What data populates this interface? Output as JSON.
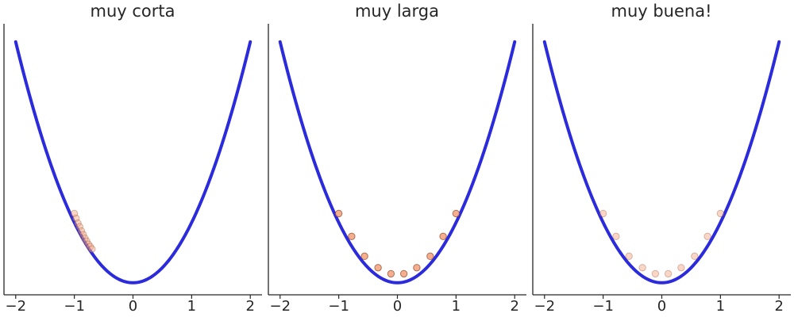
{
  "chart_data": [
    {
      "type": "line",
      "title": "muy corta",
      "xlabel": "",
      "ylabel": "",
      "xlim": [
        -2.2,
        2.2
      ],
      "ylim": [
        -0.2,
        4.3
      ],
      "x_ticks": [
        -2,
        -1,
        0,
        1,
        2
      ],
      "x_tick_labels": [
        "−2",
        "−1",
        "0",
        "1",
        "2"
      ],
      "y_ticks": [],
      "grid": false,
      "series": [
        {
          "kind": "line",
          "function": "y = x^2",
          "x_range": [
            -2,
            2
          ],
          "color": "#2b2bdc"
        },
        {
          "kind": "scatter",
          "color": "#f4a582",
          "opacity": 0.45,
          "x": [
            -1.0,
            -0.97,
            -0.94,
            -0.91,
            -0.88,
            -0.85,
            -0.82,
            -0.79,
            -0.76,
            -0.73,
            -0.7
          ],
          "y": [
            1.15,
            1.07,
            0.99,
            0.93,
            0.86,
            0.8,
            0.74,
            0.69,
            0.64,
            0.6,
            0.56
          ]
        }
      ]
    },
    {
      "type": "line",
      "title": "muy larga",
      "xlabel": "",
      "ylabel": "",
      "xlim": [
        -2.2,
        2.2
      ],
      "ylim": [
        -0.2,
        4.3
      ],
      "x_ticks": [
        -2,
        -1,
        0,
        1,
        2
      ],
      "x_tick_labels": [
        "−2",
        "−1",
        "0",
        "1",
        "2"
      ],
      "y_ticks": [],
      "grid": false,
      "series": [
        {
          "kind": "line",
          "function": "y = x^2",
          "x_range": [
            -2,
            2
          ],
          "color": "#2b2bdc"
        },
        {
          "kind": "scatter",
          "color": "#f4a582",
          "opacity": 0.9,
          "x": [
            -1.0,
            -0.78,
            -0.56,
            -0.33,
            -0.11,
            0.11,
            0.33,
            0.56,
            0.78,
            1.0
          ],
          "y": [
            1.15,
            0.77,
            0.44,
            0.25,
            0.15,
            0.15,
            0.25,
            0.44,
            0.77,
            1.15
          ]
        }
      ]
    },
    {
      "type": "line",
      "title": "muy buena!",
      "xlabel": "",
      "ylabel": "",
      "xlim": [
        -2.2,
        2.2
      ],
      "ylim": [
        -0.2,
        4.3
      ],
      "x_ticks": [
        -2,
        -1,
        0,
        1,
        2
      ],
      "x_tick_labels": [
        "−2",
        "−1",
        "0",
        "1",
        "2"
      ],
      "y_ticks": [],
      "grid": false,
      "series": [
        {
          "kind": "line",
          "function": "y = x^2",
          "x_range": [
            -2,
            2
          ],
          "color": "#2b2bdc"
        },
        {
          "kind": "scatter",
          "color": "#f4a582",
          "opacity": 0.45,
          "x": [
            -1.0,
            -0.78,
            -0.56,
            -0.33,
            -0.11,
            0.11,
            0.33,
            0.56,
            0.78,
            1.0
          ],
          "y": [
            1.15,
            0.77,
            0.44,
            0.25,
            0.15,
            0.15,
            0.25,
            0.44,
            0.77,
            1.15
          ]
        }
      ]
    }
  ]
}
